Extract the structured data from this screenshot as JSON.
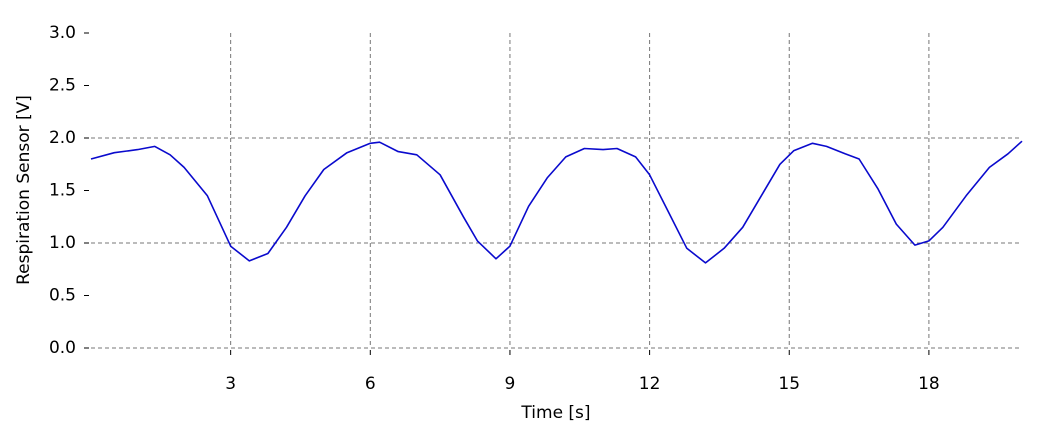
{
  "chart_data": {
    "type": "line",
    "xlabel": "Time [s]",
    "ylabel": "Respiration Sensor [V]",
    "x": [
      0,
      0.5,
      1.0,
      1.37,
      1.7,
      2.0,
      2.5,
      3.0,
      3.4,
      3.8,
      4.2,
      4.6,
      5.0,
      5.5,
      6.0,
      6.2,
      6.6,
      7.0,
      7.5,
      8.0,
      8.3,
      8.7,
      9.0,
      9.4,
      9.8,
      10.2,
      10.6,
      11.0,
      11.3,
      11.7,
      12.0,
      12.4,
      12.8,
      13.2,
      13.6,
      14.0,
      14.4,
      14.8,
      15.1,
      15.5,
      15.8,
      16.2,
      16.5,
      16.9,
      17.3,
      17.7,
      18.0,
      18.3,
      18.8,
      19.3,
      19.7,
      20.0
    ],
    "series": [
      {
        "name": "Respiration",
        "color": "#0a0acd",
        "values": [
          1.8,
          1.86,
          1.89,
          1.92,
          1.84,
          1.72,
          1.45,
          0.97,
          0.83,
          0.9,
          1.15,
          1.45,
          1.7,
          1.86,
          1.95,
          1.96,
          1.87,
          1.84,
          1.65,
          1.25,
          1.02,
          0.85,
          0.97,
          1.35,
          1.62,
          1.82,
          1.9,
          1.89,
          1.9,
          1.82,
          1.65,
          1.3,
          0.95,
          0.81,
          0.95,
          1.15,
          1.45,
          1.75,
          1.88,
          1.95,
          1.92,
          1.85,
          1.8,
          1.52,
          1.18,
          0.98,
          1.02,
          1.15,
          1.45,
          1.72,
          1.85,
          1.97
        ]
      }
    ],
    "xlim": [
      0,
      20
    ],
    "xticks": [
      3,
      6,
      9,
      12,
      15,
      18
    ],
    "ylim": [
      0,
      3
    ],
    "yticks": [
      {
        "value": 0,
        "label": "0.0"
      },
      {
        "value": 0.5,
        "label": "0.5"
      },
      {
        "value": 1,
        "label": "1.0"
      },
      {
        "value": 1.5,
        "label": "1.5"
      },
      {
        "value": 2,
        "label": "2.0"
      },
      {
        "value": 2.5,
        "label": "2.5"
      },
      {
        "value": 3,
        "label": "3.0"
      }
    ],
    "grid": true
  }
}
